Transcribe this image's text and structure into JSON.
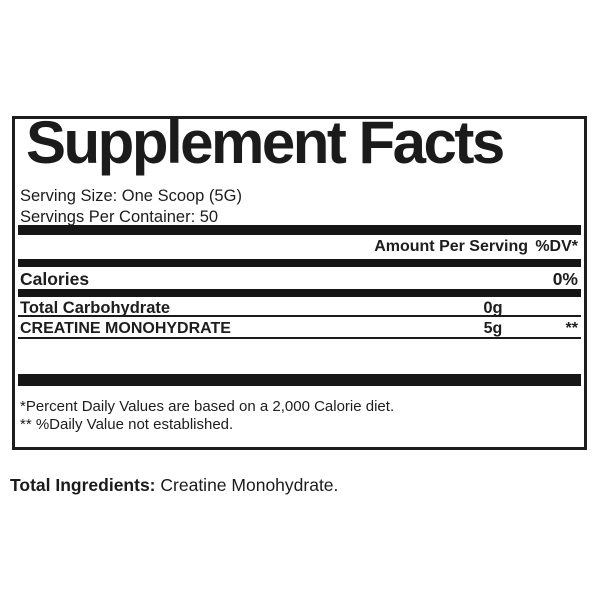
{
  "colors": {
    "ink": "#1d1d1d",
    "bar": "#161616",
    "background": "#ffffff"
  },
  "panel": {
    "title": "Supplement Facts",
    "serving_size": "Serving Size: One Scoop (5G)",
    "servings_per_container": "Servings Per Container: 50",
    "columns": {
      "amount": "Amount Per Serving",
      "dv": "%DV*"
    },
    "rows": [
      {
        "name": "Calories",
        "amount": "",
        "dv": "0%"
      },
      {
        "name": "Total Carbohydrate",
        "amount": "0g",
        "dv": ""
      },
      {
        "name": "CREATINE MONOHYDRATE",
        "amount": "5g",
        "dv": "**"
      }
    ],
    "footnotes": [
      "*Percent Daily Values are based on a 2,000 Calorie diet.",
      "** %Daily Value not established."
    ]
  },
  "ingredients": {
    "label": "Total Ingredients:",
    "value": "Creatine Monohydrate."
  }
}
